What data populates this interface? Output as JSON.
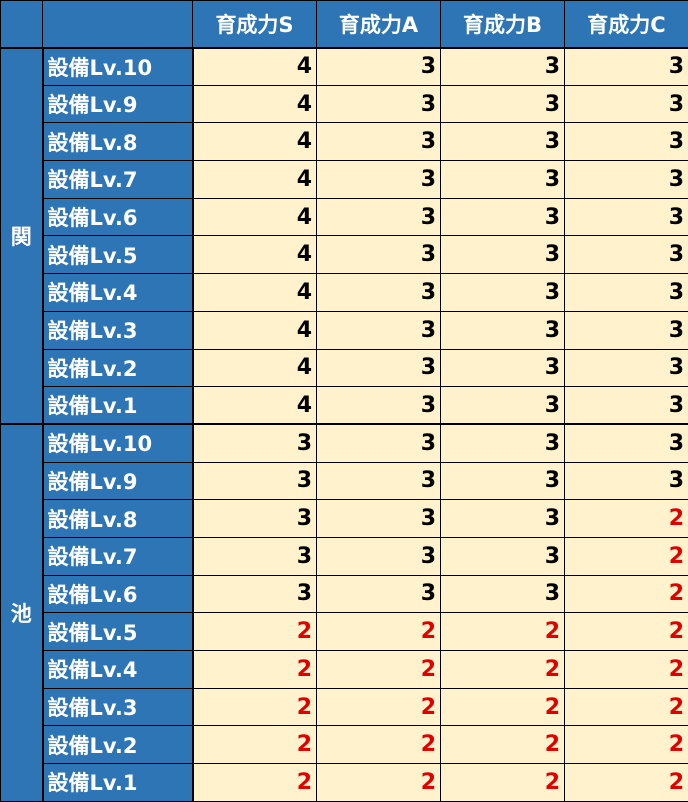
{
  "headers": [
    "",
    "",
    "育成力S",
    "育成力A",
    "育成力B",
    "育成力C"
  ],
  "colors": {
    "header_bg": "#2E75B6",
    "cell_bg": "#FFF2CC",
    "highlight_value": "#E00000"
  },
  "groups": [
    {
      "label": "関",
      "rows": [
        {
          "level": "設備Lv.10",
          "values": [
            "4",
            "3",
            "3",
            "3"
          ]
        },
        {
          "level": "設備Lv.9",
          "values": [
            "4",
            "3",
            "3",
            "3"
          ]
        },
        {
          "level": "設備Lv.8",
          "values": [
            "4",
            "3",
            "3",
            "3"
          ]
        },
        {
          "level": "設備Lv.7",
          "values": [
            "4",
            "3",
            "3",
            "3"
          ]
        },
        {
          "level": "設備Lv.6",
          "values": [
            "4",
            "3",
            "3",
            "3"
          ]
        },
        {
          "level": "設備Lv.5",
          "values": [
            "4",
            "3",
            "3",
            "3"
          ]
        },
        {
          "level": "設備Lv.4",
          "values": [
            "4",
            "3",
            "3",
            "3"
          ]
        },
        {
          "level": "設備Lv.3",
          "values": [
            "4",
            "3",
            "3",
            "3"
          ]
        },
        {
          "level": "設備Lv.2",
          "values": [
            "4",
            "3",
            "3",
            "3"
          ]
        },
        {
          "level": "設備Lv.1",
          "values": [
            "4",
            "3",
            "3",
            "3"
          ]
        }
      ]
    },
    {
      "label": "池",
      "rows": [
        {
          "level": "設備Lv.10",
          "values": [
            "3",
            "3",
            "3",
            "3"
          ]
        },
        {
          "level": "設備Lv.9",
          "values": [
            "3",
            "3",
            "3",
            "3"
          ]
        },
        {
          "level": "設備Lv.8",
          "values": [
            "3",
            "3",
            "3",
            "2"
          ]
        },
        {
          "level": "設備Lv.7",
          "values": [
            "3",
            "3",
            "3",
            "2"
          ]
        },
        {
          "level": "設備Lv.6",
          "values": [
            "3",
            "3",
            "3",
            "2"
          ]
        },
        {
          "level": "設備Lv.5",
          "values": [
            "2",
            "2",
            "2",
            "2"
          ]
        },
        {
          "level": "設備Lv.4",
          "values": [
            "2",
            "2",
            "2",
            "2"
          ]
        },
        {
          "level": "設備Lv.3",
          "values": [
            "2",
            "2",
            "2",
            "2"
          ]
        },
        {
          "level": "設備Lv.2",
          "values": [
            "2",
            "2",
            "2",
            "2"
          ]
        },
        {
          "level": "設備Lv.1",
          "values": [
            "2",
            "2",
            "2",
            "2"
          ]
        }
      ]
    }
  ]
}
